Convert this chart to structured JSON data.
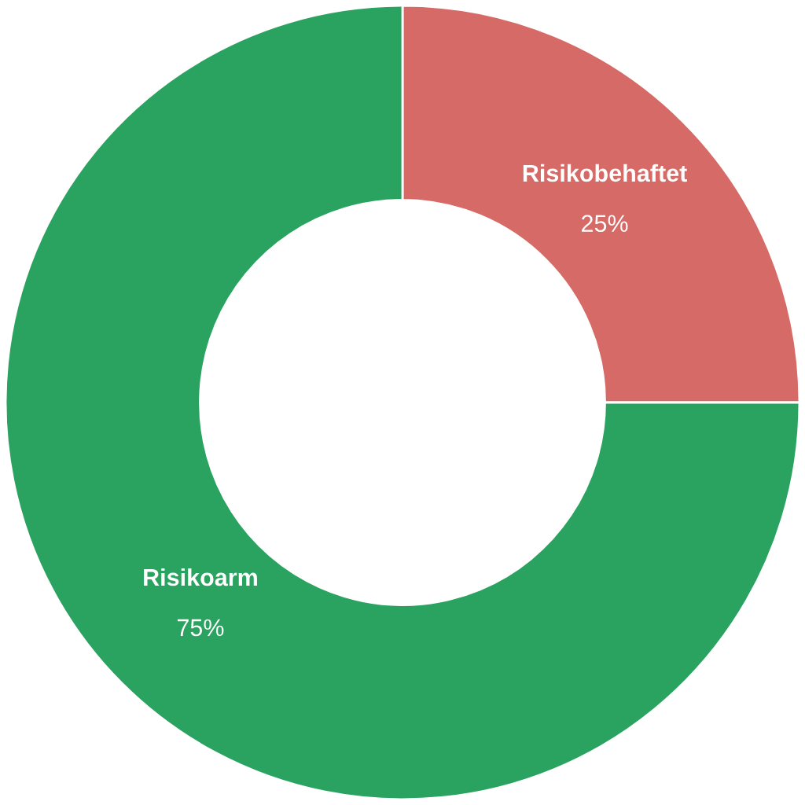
{
  "chart_data": {
    "type": "donut",
    "categories": [
      "Risikobehaftet",
      "Risikoarm"
    ],
    "values": [
      25,
      75
    ],
    "colors": [
      "#d66a66",
      "#2ba360"
    ],
    "value_labels": [
      "25%",
      "75%"
    ]
  }
}
